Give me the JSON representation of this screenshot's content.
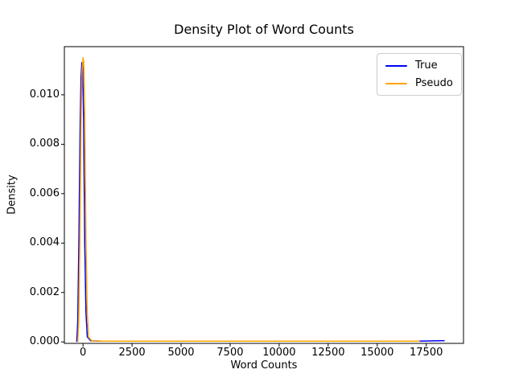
{
  "figure": {
    "background": "#ffffff",
    "text_color": "#000000",
    "spine_color": "#000000"
  },
  "chart_data": {
    "type": "line",
    "title": "Density Plot of Word Counts",
    "xlabel": "Word Counts",
    "ylabel": "Density",
    "grid": false,
    "xlim": [
      -950,
      19400
    ],
    "ylim": [
      -6e-05,
      0.01195
    ],
    "xticks": [
      0,
      2500,
      5000,
      7500,
      10000,
      12500,
      15000,
      17500
    ],
    "xtick_labels": [
      "0",
      "2500",
      "5000",
      "7500",
      "10000",
      "12500",
      "15000",
      "17500"
    ],
    "yticks": [
      0.0,
      0.002,
      0.004,
      0.006,
      0.008,
      0.01
    ],
    "ytick_labels": [
      "0.000",
      "0.002",
      "0.004",
      "0.006",
      "0.008",
      "0.010"
    ],
    "legend": {
      "position": "upper right",
      "entries": [
        {
          "label": "True",
          "color": "#0000ff"
        },
        {
          "label": "Pseudo",
          "color": "#ffa500"
        }
      ]
    },
    "series": [
      {
        "name": "True",
        "color": "#0000ff",
        "peak": {
          "x": 0,
          "y": 0.0113
        },
        "x": [
          -320,
          -270,
          -210,
          -150,
          -100,
          -60,
          -20,
          30,
          90,
          150,
          220,
          400,
          1000,
          5000,
          10000,
          15000,
          17000,
          18440
        ],
        "y": [
          0,
          0.0008,
          0.004,
          0.0085,
          0.0107,
          0.0113,
          0.0112,
          0.009,
          0.004,
          0.0012,
          0.0002,
          4e-05,
          3e-05,
          3e-05,
          3e-05,
          3e-05,
          3e-05,
          5e-05
        ]
      },
      {
        "name": "Pseudo",
        "color": "#ffa500",
        "peak": {
          "x": 0,
          "y": 0.0115
        },
        "x": [
          -270,
          -220,
          -160,
          -100,
          -50,
          0,
          40,
          90,
          150,
          210,
          280,
          450,
          1000,
          5000,
          10000,
          15000,
          17170
        ],
        "y": [
          0,
          0.0008,
          0.0042,
          0.0088,
          0.0109,
          0.0115,
          0.0113,
          0.0092,
          0.0042,
          0.0013,
          0.0002,
          4e-05,
          3e-05,
          3e-05,
          3e-05,
          3e-05,
          3e-05
        ]
      }
    ]
  }
}
